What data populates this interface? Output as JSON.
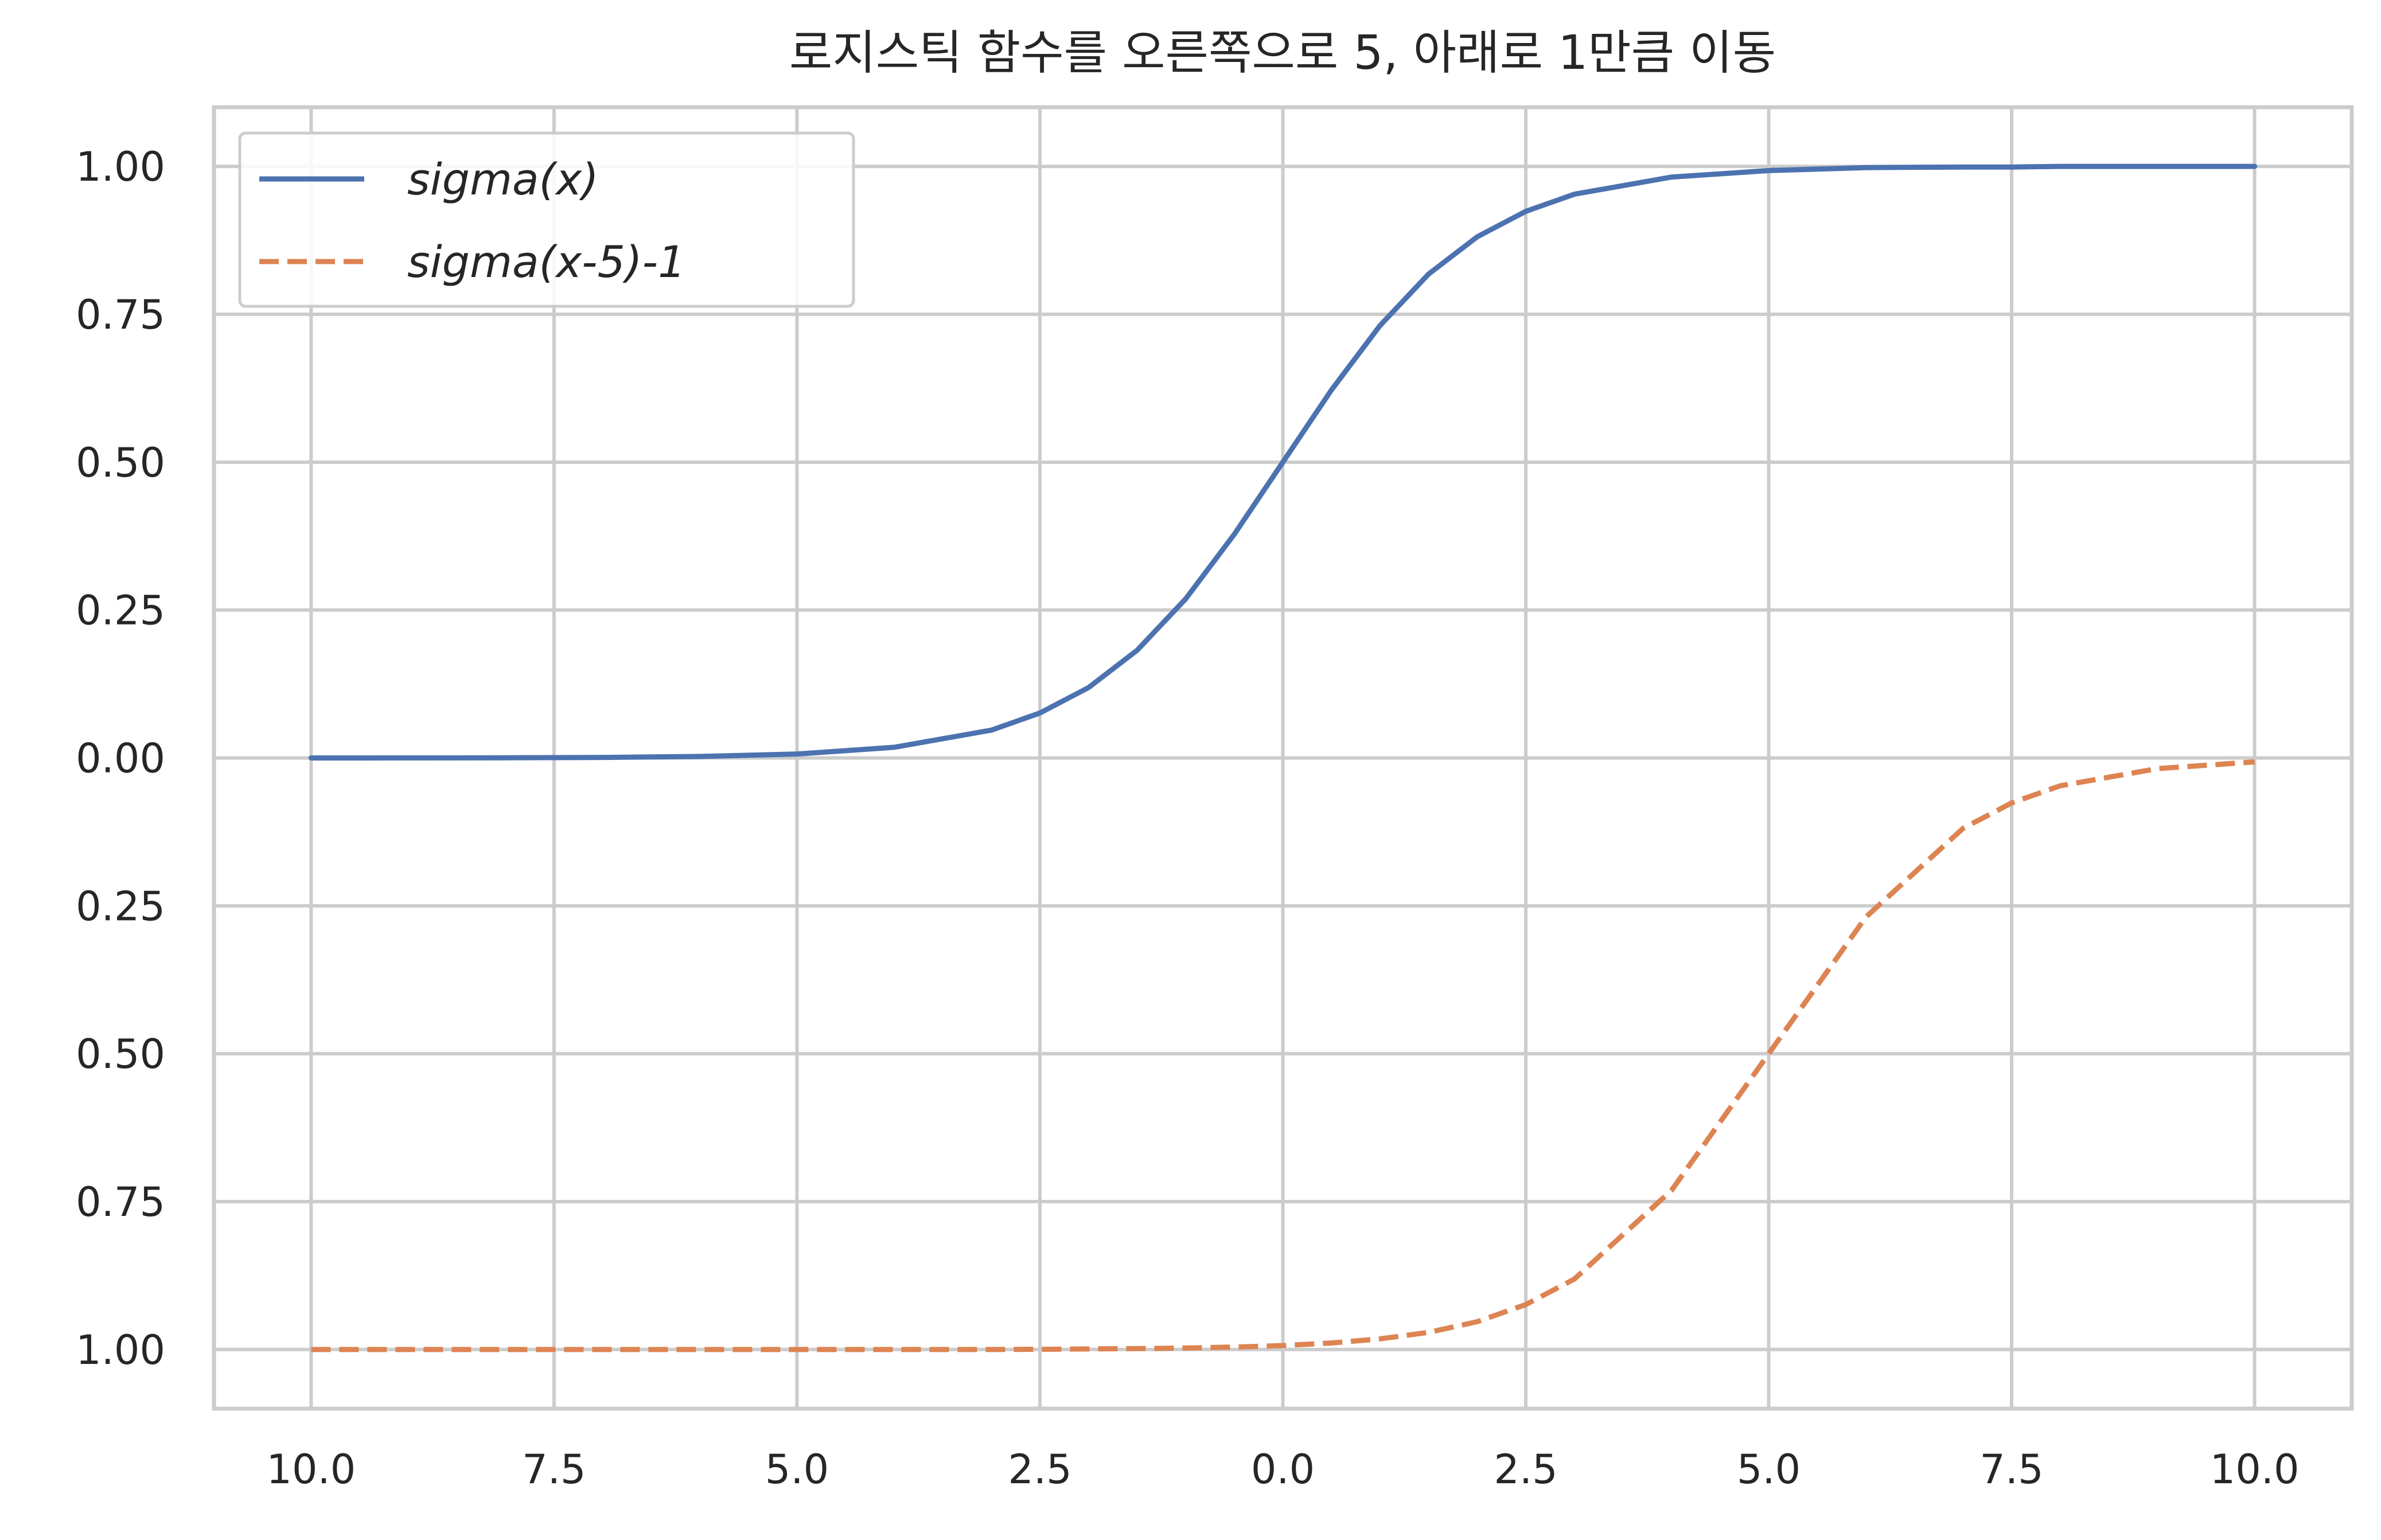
{
  "chart_data": {
    "type": "line",
    "title": "로지스틱 함수를 오른쪽으로 5, 아래로 1만큼 이동",
    "xlabel": "",
    "ylabel": "",
    "xlim": [
      -11.0,
      11.0
    ],
    "ylim": [
      -1.1,
      1.1
    ],
    "x_ticks": [
      -10.0,
      -7.5,
      -5.0,
      -2.5,
      0.0,
      2.5,
      5.0,
      7.5,
      10.0
    ],
    "x_tick_labels": [
      "\u001f10.0",
      "\u001f7.5",
      "\u001f5.0",
      "\u001f2.5",
      "0.0",
      "2.5",
      "5.0",
      "7.5",
      "10.0"
    ],
    "y_ticks": [
      1.0,
      0.75,
      0.5,
      0.25,
      0.0,
      -0.25,
      -0.5,
      -0.75,
      -1.0
    ],
    "y_tick_labels": [
      "1.00",
      "0.75",
      "0.50",
      "0.25",
      "0.00",
      "\u001f0.25",
      "\u001f0.50",
      "\u001f0.75",
      "\u001f1.00"
    ],
    "grid": true,
    "legend_position": "top-left",
    "x": [
      -10,
      -9,
      -8,
      -7,
      -6,
      -5,
      -4,
      -3,
      -2.5,
      -2,
      -1.5,
      -1,
      -0.5,
      0,
      0.5,
      1,
      1.5,
      2,
      2.5,
      3,
      4,
      5,
      6,
      7,
      7.5,
      8,
      9,
      10
    ],
    "series": [
      {
        "name": "sigma(x)",
        "line_style": "solid",
        "color": "#4c72b0",
        "values": [
          0.0,
          0.0001,
          0.0003,
          0.0009,
          0.0025,
          0.0067,
          0.018,
          0.047,
          0.076,
          0.119,
          0.182,
          0.269,
          0.378,
          0.5,
          0.622,
          0.731,
          0.818,
          0.881,
          0.924,
          0.953,
          0.982,
          0.993,
          0.998,
          0.999,
          0.999,
          1.0,
          1.0,
          1.0
        ]
      },
      {
        "name": "sigma(x-5)-1",
        "line_style": "dashed",
        "color": "#dd8452",
        "values": [
          -1.0,
          -1.0,
          -1.0,
          -1.0,
          -1.0,
          -1.0,
          -1.0,
          -1.0,
          -0.9996,
          -0.9991,
          -0.9985,
          -0.9975,
          -0.9959,
          -0.9933,
          -0.989,
          -0.982,
          -0.971,
          -0.953,
          -0.924,
          -0.881,
          -0.731,
          -0.5,
          -0.269,
          -0.119,
          -0.076,
          -0.047,
          -0.018,
          -0.0067
        ]
      }
    ]
  },
  "legend": {
    "entries": [
      {
        "label": "sigma(x)",
        "color": "#4c72b0",
        "line_style": "solid"
      },
      {
        "label": "sigma(x-5)-1",
        "color": "#dd8452",
        "line_style": "dashed"
      }
    ]
  },
  "style": {
    "background": "#ffffff",
    "grid_color": "#cccccc",
    "text_color": "#262626"
  }
}
